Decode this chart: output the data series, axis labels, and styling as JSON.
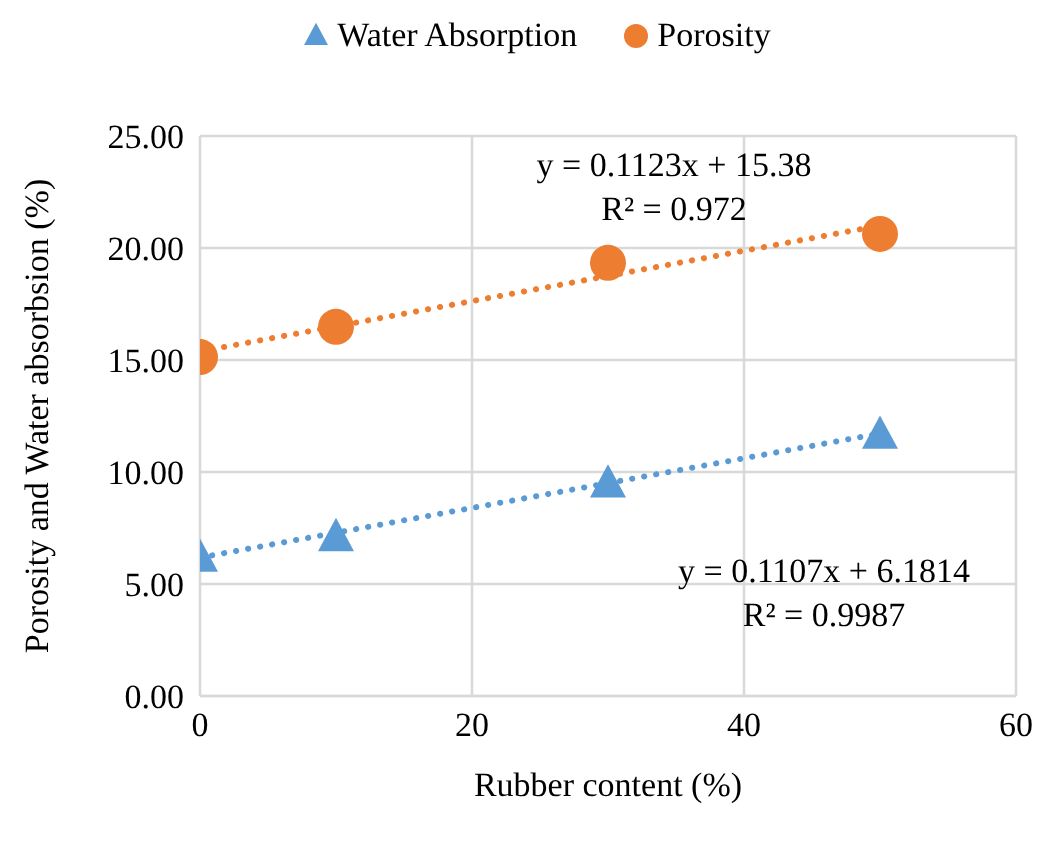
{
  "chart_data": {
    "type": "scatter",
    "xlabel": "Rubber content (%)",
    "ylabel": "Porosity and Water absorbsion (%)",
    "series": [
      {
        "name": "Water Absorption",
        "color": "#5b9bd5",
        "marker": "triangle",
        "x": [
          0,
          10,
          30,
          50
        ],
        "values": [
          6.15,
          7.07,
          9.46,
          11.64
        ]
      },
      {
        "name": "Porosity",
        "color": "#ed7d31",
        "marker": "circle",
        "x": [
          0,
          10,
          30,
          50
        ],
        "values": [
          15.13,
          16.48,
          19.34,
          20.63
        ]
      },
      {
        "type": "line",
        "color": "#5b9bd5",
        "marker": "none",
        "line_style": "dotted",
        "x": [
          0,
          50
        ],
        "values": [
          6.18,
          11.72
        ]
      },
      {
        "type": "line",
        "color": "#ed7d31",
        "marker": "none",
        "line_style": "dotted",
        "x": [
          0,
          50
        ],
        "values": [
          15.38,
          21.0
        ]
      }
    ],
    "annotations": [
      "y = 0.1123x + 15.38",
      "R² = 0.972",
      "y = 0.1107x + 6.1814",
      "R² = 0.9987"
    ],
    "xlim": [
      0,
      60
    ],
    "xticks": [
      0,
      20,
      40,
      60
    ],
    "ylim": [
      0,
      25
    ],
    "yticks": [
      {
        "value": 0,
        "label": "0.00"
      },
      {
        "value": 5,
        "label": "5.00"
      },
      {
        "value": 10,
        "label": "10.00"
      },
      {
        "value": 15,
        "label": "15.00"
      },
      {
        "value": 20,
        "label": "20.00"
      },
      {
        "value": 25,
        "label": "25.00"
      }
    ],
    "grid": true,
    "legend": "top"
  }
}
